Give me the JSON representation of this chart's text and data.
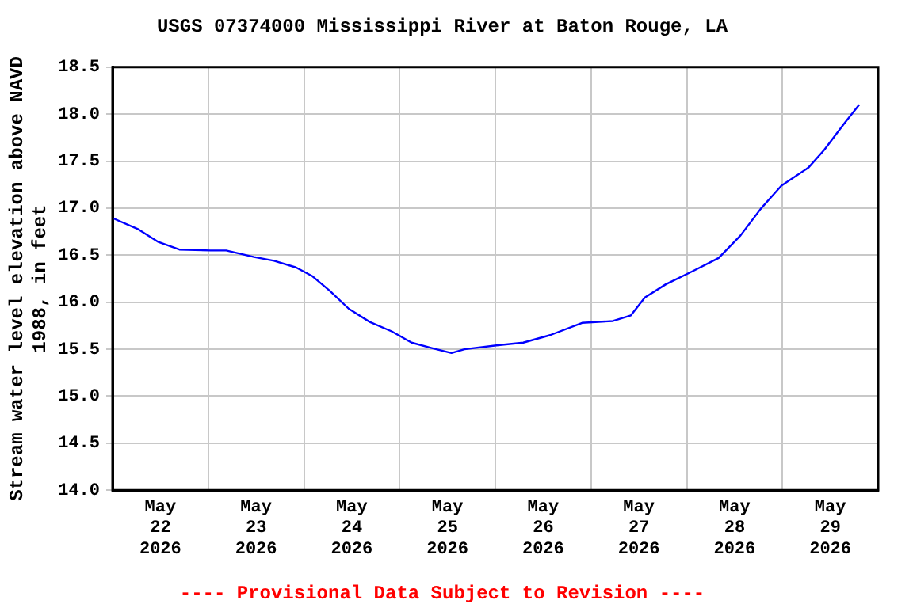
{
  "chart_data": {
    "type": "line",
    "title": "USGS 07374000 Mississippi River at Baton Rouge, LA",
    "ylabel": "Stream water level elevation above NAVD 1988, in feet",
    "annotations": [
      "---- Provisional Data Subject to Revision ----"
    ],
    "x": [
      "2026-05-22T00:15",
      "2026-05-22T06:15",
      "2026-05-22T11:30",
      "2026-05-22T16:45",
      "2026-05-23T00:30",
      "2026-05-23T04:30",
      "2026-05-23T11:30",
      "2026-05-23T16:30",
      "2026-05-23T22:00",
      "2026-05-24T02:00",
      "2026-05-24T06:30",
      "2026-05-24T11:15",
      "2026-05-24T16:30",
      "2026-05-24T22:00",
      "2026-05-25T03:00",
      "2026-05-25T08:15",
      "2026-05-25T13:00",
      "2026-05-25T16:15",
      "2026-05-26T00:15",
      "2026-05-26T07:00",
      "2026-05-26T13:45",
      "2026-05-26T21:45",
      "2026-05-27T05:30",
      "2026-05-27T10:00",
      "2026-05-27T13:30",
      "2026-05-27T18:45",
      "2026-05-28T01:30",
      "2026-05-28T08:00",
      "2026-05-28T13:30",
      "2026-05-28T18:30",
      "2026-05-28T23:45",
      "2026-05-29T06:30",
      "2026-05-29T10:30",
      "2026-05-29T15:30",
      "2026-05-29T19:15"
    ],
    "series": [
      {
        "color": "#0000ff",
        "values": [
          16.89,
          16.78,
          16.64,
          16.56,
          16.55,
          16.55,
          16.48,
          16.44,
          16.37,
          16.28,
          16.12,
          15.93,
          15.79,
          15.69,
          15.57,
          15.51,
          15.46,
          15.5,
          15.54,
          15.57,
          15.65,
          15.78,
          15.8,
          15.86,
          16.05,
          16.19,
          16.33,
          16.47,
          16.71,
          16.99,
          17.24,
          17.43,
          17.62,
          17.9,
          18.1
        ]
      }
    ],
    "xlim": [
      "2026-05-22T00:00",
      "2026-05-30T00:00"
    ],
    "xticks": [
      {
        "value": "2026-05-22T00:00",
        "label": null
      },
      {
        "value": "2026-05-22T12:00",
        "label": "May 22 2026"
      },
      {
        "value": "2026-05-23T00:00",
        "label": null
      },
      {
        "value": "2026-05-23T12:00",
        "label": "May 23 2026"
      },
      {
        "value": "2026-05-24T00:00",
        "label": null
      },
      {
        "value": "2026-05-24T12:00",
        "label": "May 24 2026"
      },
      {
        "value": "2026-05-25T00:00",
        "label": null
      },
      {
        "value": "2026-05-25T12:00",
        "label": "May 25 2026"
      },
      {
        "value": "2026-05-26T00:00",
        "label": null
      },
      {
        "value": "2026-05-26T12:00",
        "label": "May 26 2026"
      },
      {
        "value": "2026-05-27T00:00",
        "label": null
      },
      {
        "value": "2026-05-27T12:00",
        "label": "May 27 2026"
      },
      {
        "value": "2026-05-28T00:00",
        "label": null
      },
      {
        "value": "2026-05-28T12:00",
        "label": "May 28 2026"
      },
      {
        "value": "2026-05-29T00:00",
        "label": null
      },
      {
        "value": "2026-05-29T12:00",
        "label": "May 29 2026"
      },
      {
        "value": "2026-05-30T00:00",
        "label": null
      }
    ],
    "ylim": [
      14.0,
      18.5
    ],
    "yticks": [
      {
        "value": 14,
        "label": "14.0"
      },
      {
        "value": 14.5,
        "label": "14.5"
      },
      {
        "value": 15,
        "label": "15.0"
      },
      {
        "value": 15.5,
        "label": "15.5"
      },
      {
        "value": 16,
        "label": "16.0"
      },
      {
        "value": 16.5,
        "label": "16.5"
      },
      {
        "value": 17,
        "label": "17.0"
      },
      {
        "value": 17.5,
        "label": "17.5"
      },
      {
        "value": 18,
        "label": "18.0"
      },
      {
        "value": 18.5,
        "label": "18.5"
      }
    ],
    "grid": true,
    "legend": false,
    "marker": "none",
    "line_style": "solid"
  }
}
